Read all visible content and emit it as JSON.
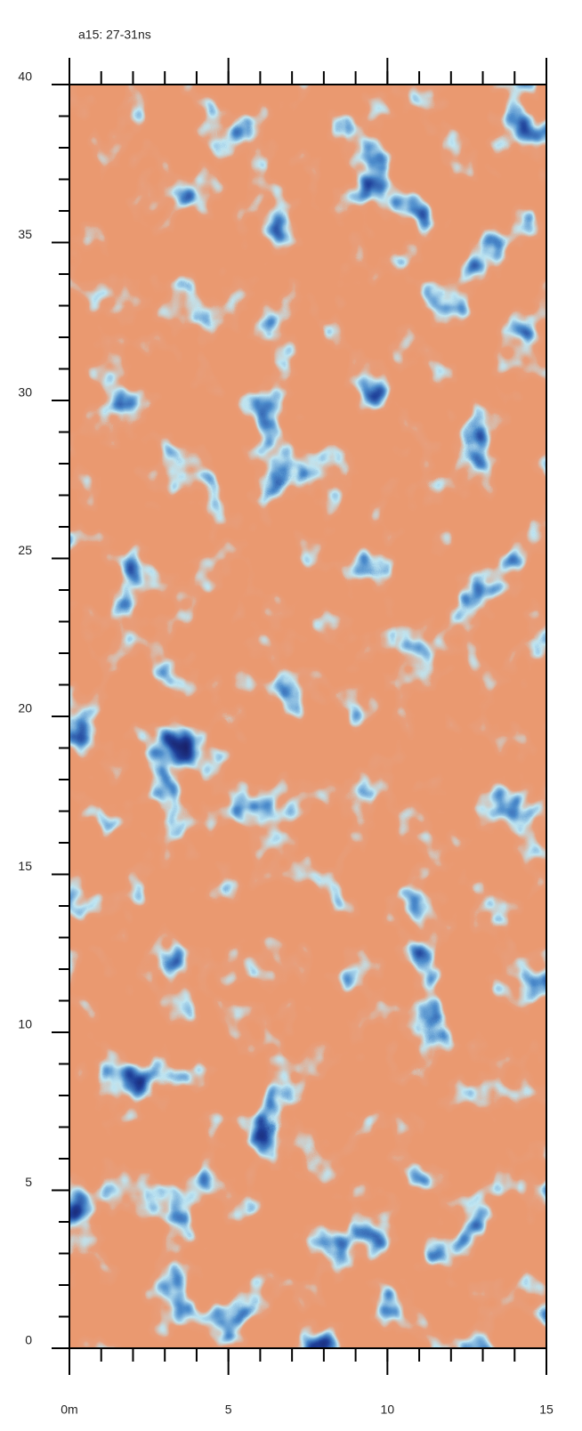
{
  "chart_data": {
    "type": "heatmap",
    "title": "a15: 27-31ns",
    "xlim": [
      0,
      15
    ],
    "ylim": [
      0,
      40
    ],
    "xticks": [
      {
        "value": 0,
        "label": "0m"
      },
      5,
      10,
      15
    ],
    "yticks": [
      0,
      5,
      10,
      15,
      20,
      25,
      30,
      35,
      40
    ],
    "xminorticks": [
      0,
      1,
      2,
      3,
      4,
      5,
      6,
      7,
      8,
      9,
      10,
      11,
      12,
      13,
      14,
      15
    ],
    "yminorticks": [
      0,
      1,
      2,
      3,
      4,
      5,
      6,
      7,
      8,
      9,
      10,
      11,
      12,
      13,
      14,
      15,
      16,
      17,
      18,
      19,
      20,
      21,
      22,
      23,
      24,
      25,
      26,
      27,
      28,
      29,
      30,
      31,
      32,
      33,
      34,
      35,
      36,
      37,
      38,
      39,
      40
    ]
  }
}
